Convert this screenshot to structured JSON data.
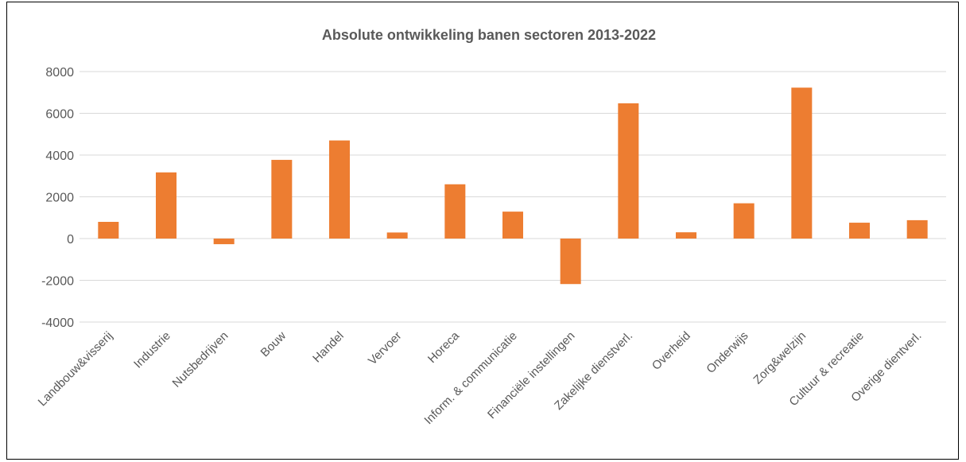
{
  "chart_data": {
    "type": "bar",
    "title": "Absolute ontwikkeling banen sectoren 2013-2022",
    "xlabel": "",
    "ylabel": "",
    "ylim": [
      -4000,
      8000
    ],
    "yticks": [
      "8000",
      "6000",
      "4000",
      "2000",
      "0",
      "-2000",
      "-4000"
    ],
    "grid": true,
    "bar_color": "#ED7D31",
    "categories": [
      "Landbouw&visserij",
      "Industrie",
      "Nutsbedrijven",
      "Bouw",
      "Handel",
      "Vervoer",
      "Horeca",
      "Inform. & communicatie",
      "Financiële instellingen",
      "Zakelijke dienstverl.",
      "Overheid",
      "Onderwijs",
      "Zorg&welzijn",
      "Cultuur & recreatie",
      "Overige dientverl."
    ],
    "values": [
      800,
      3170,
      -270,
      3770,
      4700,
      290,
      2600,
      1290,
      -2180,
      6480,
      300,
      1690,
      7230,
      760,
      880
    ]
  }
}
